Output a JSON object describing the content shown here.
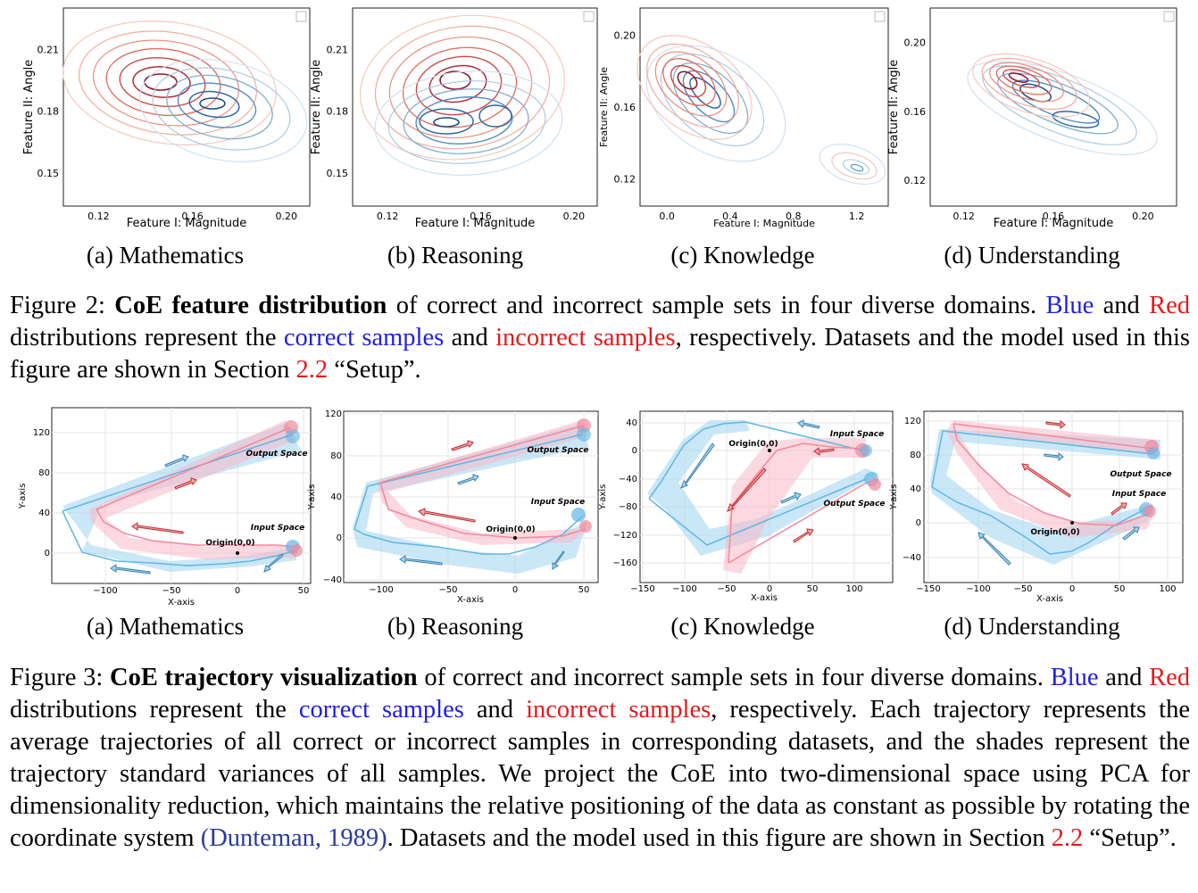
{
  "figure2": {
    "subfigures": [
      {
        "label": "(a) Mathematics",
        "xlabel": "Feature I: Magnitude",
        "ylabel": "Feature II: Angle",
        "xticks": [
          0.12,
          0.16,
          0.2
        ],
        "yticks": [
          0.15,
          0.18,
          0.21
        ],
        "xlim": [
          0.105,
          0.21
        ],
        "ylim": [
          0.134,
          0.23
        ]
      },
      {
        "label": "(b) Reasoning",
        "xlabel": "Feature I: Magnitude",
        "ylabel": "Feature II: Angle",
        "xticks": [
          0.12,
          0.16,
          0.2
        ],
        "yticks": [
          0.15,
          0.18,
          0.21
        ],
        "xlim": [
          0.105,
          0.21
        ],
        "ylim": [
          0.134,
          0.23
        ]
      },
      {
        "label": "(c) Knowledge",
        "xlabel": "Feature I: Magnitude",
        "ylabel": "Feature II: Angle",
        "xticks": [
          0.0,
          0.4,
          0.8,
          1.2
        ],
        "yticks": [
          0.12,
          0.16,
          0.2
        ],
        "xlim": [
          -0.17,
          1.4
        ],
        "ylim": [
          0.105,
          0.215
        ]
      },
      {
        "label": "(d) Understanding",
        "xlabel": "Feature I: Magnitude",
        "ylabel": "Feature II: Angle",
        "xticks": [
          0.12,
          0.16,
          0.2
        ],
        "yticks": [
          0.12,
          0.16,
          0.2
        ],
        "xlim": [
          0.105,
          0.215
        ],
        "ylim": [
          0.105,
          0.22
        ]
      }
    ],
    "caption": {
      "number": "Figure 2:",
      "bold": "CoE feature distribution",
      "rest": " of correct and incorrect sample sets in four diverse domains.",
      "blue_word": "Blue",
      "and1": " and ",
      "red_word": "Red",
      "mid": " distributions represent the ",
      "correct": "correct samples",
      "and2": " and ",
      "incorrect": "incorrect samples",
      "end": ", respectively. Datasets and the model used in this figure are shown in Section ",
      "section": "2.2",
      "setup": " “Setup”."
    }
  },
  "figure3": {
    "subfigures": [
      {
        "label": "(a) Mathematics",
        "xlabel": "X-axis",
        "ylabel": "Y-axis",
        "xticks": [
          -100,
          -50,
          0,
          50
        ],
        "yticks": [
          0,
          40,
          80,
          120
        ],
        "input_label": "Input Space",
        "output_label": "Output Space",
        "origin_label": "Origin(0,0)"
      },
      {
        "label": "(b) Reasoning",
        "xlabel": "X-axis",
        "ylabel": "Y-axis",
        "xticks": [
          -100,
          -50,
          0,
          50
        ],
        "yticks": [
          -40,
          0,
          40,
          80,
          120
        ],
        "input_label": "Input Space",
        "output_label": "Output Space",
        "origin_label": "Origin(0,0)"
      },
      {
        "label": "(c) Knowledge",
        "xlabel": "X-axis",
        "ylabel": "Y-axis",
        "xticks": [
          -150,
          -100,
          -50,
          0,
          50,
          100
        ],
        "yticks": [
          40,
          0,
          -40,
          -80,
          -120,
          -160
        ],
        "input_label": "Input Space",
        "output_label": "Output Space",
        "origin_label": "Origin(0,0)"
      },
      {
        "label": "(d) Understanding",
        "xlabel": "X-axis",
        "ylabel": "Y-axis",
        "xticks": [
          -150,
          -100,
          -50,
          0,
          50,
          100
        ],
        "yticks": [
          120,
          80,
          40,
          0,
          -40
        ],
        "input_label": "Input Space",
        "output_label": "Output Space",
        "origin_label": "Origin(0,0)"
      }
    ],
    "caption": {
      "number": "Figure 3:",
      "bold": "CoE trajectory visualization",
      "rest": " of correct and incorrect sample sets in four diverse domains.",
      "blue_word": "Blue",
      "and1": " and ",
      "red_word": "Red",
      "mid": " distributions represent the ",
      "correct": "correct samples",
      "and2": " and ",
      "incorrect": "incorrect samples",
      "text1": ", respectively. Each trajectory represents the average trajectories of all correct or incorrect samples in corresponding datasets, and the shades represent the trajectory standard variances of all samples. We project the CoE into two-dimensional space using PCA for dimensionality reduction, which maintains the relative positioning of the data as constant as possible by rotating the coordinate system ",
      "citation": "(Dunteman, 1989)",
      "text2": ". Datasets and the model used in this figure are shown in Section ",
      "section": "2.2",
      "setup": " “Setup”."
    }
  },
  "colors": {
    "blue": "#1f1fe0",
    "red": "#e41a1c",
    "cite": "#2b3a9a",
    "traj_blue": "#5fb7e5",
    "traj_red": "#f4889a"
  }
}
